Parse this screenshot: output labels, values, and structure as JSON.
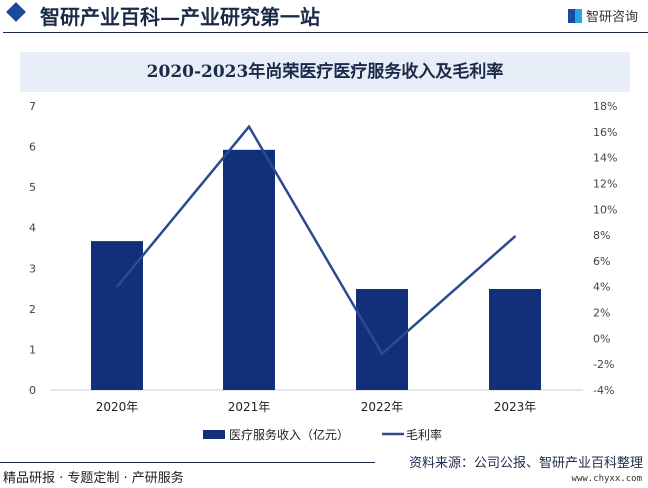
{
  "header": {
    "title": "智研产业百科—产业研究第一站",
    "logo_text": "智研咨询"
  },
  "footer": {
    "left": "精品研报 · 专题定制 · 产研服务",
    "source": "资料来源：公司公报、智研产业百科整理",
    "url": "www.chyxx.com"
  },
  "colors": {
    "bar": "#12307a",
    "line": "#2b4a8f"
  },
  "chart_data": {
    "type": "bar+line",
    "title": "2020-2023年尚荣医疗医疗服务收入及毛利率",
    "categories": [
      "2020年",
      "2021年",
      "2022年",
      "2023年"
    ],
    "series": [
      {
        "name": "医疗服务收入（亿元）",
        "type": "bar",
        "axis": "left",
        "values": [
          3.67,
          5.92,
          2.49,
          2.49
        ]
      },
      {
        "name": "毛利率",
        "type": "line",
        "axis": "right",
        "values": [
          4.0,
          16.4,
          -1.2,
          7.9
        ]
      }
    ],
    "y_left": {
      "range": [
        0,
        7
      ],
      "ticks": [
        "0",
        "1",
        "2",
        "3",
        "4",
        "5",
        "6",
        "7"
      ]
    },
    "y_right": {
      "range": [
        -4,
        18
      ],
      "ticks": [
        "-4%",
        "-2%",
        "0%",
        "2%",
        "4%",
        "6%",
        "8%",
        "10%",
        "12%",
        "14%",
        "16%",
        "18%"
      ]
    },
    "legend": "bottom",
    "grid": false
  }
}
